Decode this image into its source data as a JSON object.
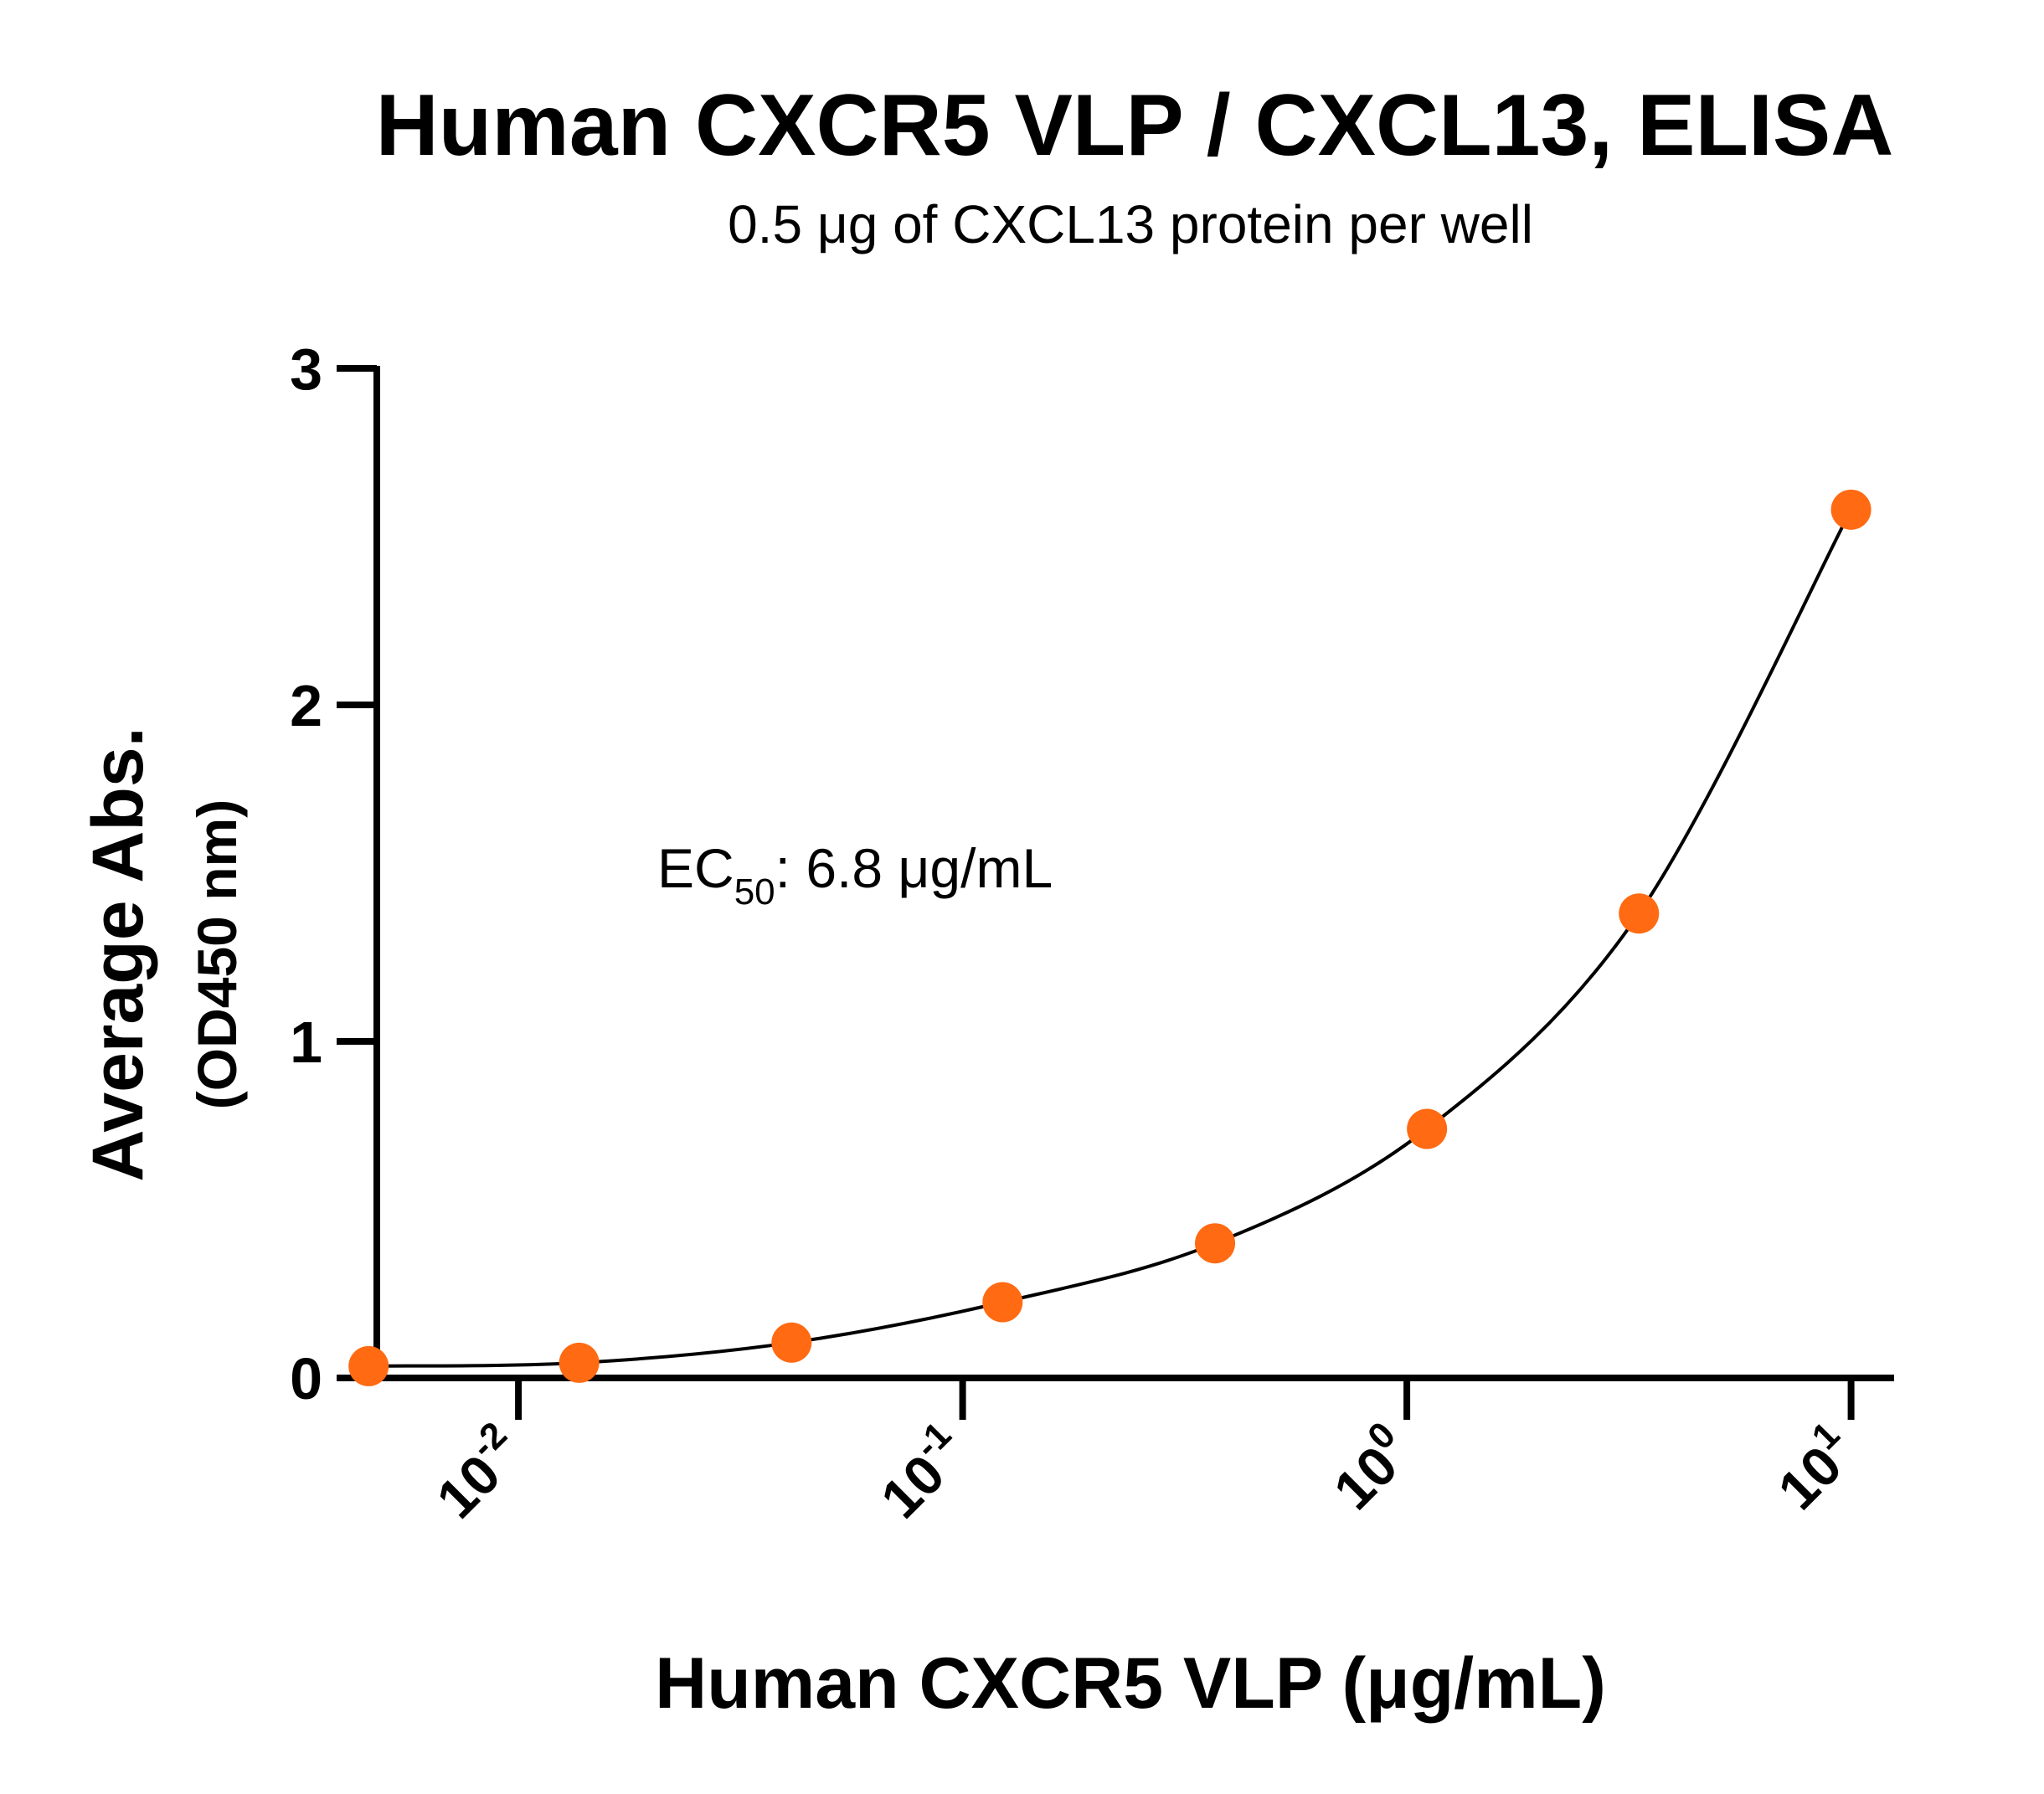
{
  "chart_data": {
    "type": "scatter",
    "title": "Human CXCR5 VLP / CXCL13, ELISA",
    "subtitle": "0.5 μg of CXCL13 protein per well",
    "xlabel": "Human CXCR5 VLP (μg/mL)",
    "ylabel": "Average Abs.",
    "ylabel_sub": "(OD450 nm)",
    "x_scale": "log10",
    "xlim": [
      0.0048,
      12.5
    ],
    "ylim": [
      0,
      3
    ],
    "x_ticks": [
      {
        "value": 0.01,
        "base": "10",
        "exp": "-2"
      },
      {
        "value": 0.1,
        "base": "10",
        "exp": "-1"
      },
      {
        "value": 1,
        "base": "10",
        "exp": "0"
      },
      {
        "value": 10,
        "base": "10",
        "exp": "1"
      }
    ],
    "y_ticks": [
      {
        "value": 0,
        "label": "0"
      },
      {
        "value": 1,
        "label": "1"
      },
      {
        "value": 2,
        "label": "2"
      },
      {
        "value": 3,
        "label": "3"
      }
    ],
    "series": [
      {
        "name": "Human CXCR5 VLP",
        "marker_color": "#ff6a13",
        "line_color": "#000000",
        "x": [
          0.0046,
          0.0137,
          0.0412,
          0.123,
          0.37,
          1.11,
          3.33,
          10.0
        ],
        "y": [
          0.035,
          0.045,
          0.105,
          0.225,
          0.4,
          0.74,
          1.38,
          2.58
        ]
      }
    ],
    "annotation": {
      "prefix": "EC",
      "subscript": "50",
      "suffix": ": 6.8 μg/mL"
    }
  }
}
